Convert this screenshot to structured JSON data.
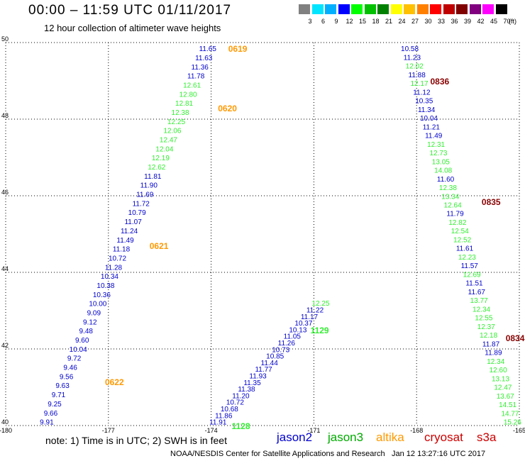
{
  "header": {
    "title": "00:00 – 11:59 UTC 01/11/2017",
    "subtitle": "12 hour collection of altimeter wave heights"
  },
  "legend": {
    "colors": [
      "#808080",
      "#00e5ff",
      "#00b0ff",
      "#0000ff",
      "#00ff00",
      "#00c000",
      "#008000",
      "#ffff00",
      "#ffc000",
      "#ff8000",
      "#ff0000",
      "#c00000",
      "#800000",
      "#800080",
      "#ff00ff",
      "#000000"
    ],
    "labels": [
      "3",
      "6",
      "9",
      "12",
      "15",
      "18",
      "21",
      "24",
      "27",
      "30",
      "33",
      "36",
      "39",
      "42",
      "45",
      "70"
    ],
    "unit": "(ft)"
  },
  "footer": {
    "note": "note: 1) Time is in UTC; 2) SWH is in feet",
    "credit": "NOAA/NESDIS Center for Satellite Applications and Research",
    "timestamp": "Jan 12 13:27:16 UTC 2017",
    "satellites": [
      {
        "name": "jason2",
        "color": "#0000cc"
      },
      {
        "name": "jason3",
        "color": "#00aa00"
      },
      {
        "name": "altika",
        "color": "#ff9900"
      },
      {
        "name": "cryosat",
        "color": "#cc0000"
      },
      {
        "name": "s3a",
        "color": "#cc0000"
      }
    ]
  },
  "chart_data": {
    "type": "scatter",
    "title": "00:00 – 11:59 UTC 01/11/2017",
    "subtitle": "12 hour collection of altimeter wave heights",
    "xlim": [
      -180,
      -165
    ],
    "ylim": [
      40,
      50
    ],
    "x_ticks": [
      "-180",
      "-177",
      "-174",
      "-171",
      "-168",
      "-165"
    ],
    "y_ticks": [
      "40",
      "42",
      "44",
      "46",
      "48",
      "50"
    ],
    "grid": true,
    "series_colors": {
      "jason2": "#0000cc",
      "jason3": "#33ee33",
      "altika": "#ff9900",
      "cryosat": "#880000",
      "s3a": "#cc0000"
    },
    "tracks": [
      {
        "sat": "jason2",
        "start": [
          -174.1,
          49.85
        ],
        "end": [
          -178.8,
          40.1
        ],
        "values": [
          [
            "11.65",
            "jason2"
          ],
          [
            "11.63",
            "jason2"
          ],
          [
            "11.36",
            "jason2"
          ],
          [
            "11.78",
            "jason2"
          ],
          [
            "12.61",
            "jason3"
          ],
          [
            "12.80",
            "jason3"
          ],
          [
            "12.81",
            "jason3"
          ],
          [
            "12.38",
            "jason3"
          ],
          [
            "12.25",
            "jason3"
          ],
          [
            "12.06",
            "jason3"
          ],
          [
            "12.47",
            "jason3"
          ],
          [
            "12.04",
            "jason3"
          ],
          [
            "12.19",
            "jason3"
          ],
          [
            "12.62",
            "jason3"
          ],
          [
            "11.81",
            "jason2"
          ],
          [
            "11.90",
            "jason2"
          ],
          [
            "11.69",
            "jason2"
          ],
          [
            "11.72",
            "jason2"
          ],
          [
            "10.79",
            "jason2"
          ],
          [
            "11.07",
            "jason2"
          ],
          [
            "11.24",
            "jason2"
          ],
          [
            "11.49",
            "jason2"
          ],
          [
            "11.18",
            "jason2"
          ],
          [
            "10.72",
            "jason2"
          ],
          [
            "11.28",
            "jason2"
          ],
          [
            "10.34",
            "jason2"
          ],
          [
            "10.38",
            "jason2"
          ],
          [
            "10.36",
            "jason2"
          ],
          [
            "10.00",
            "jason2"
          ],
          [
            "9.09",
            "jason2"
          ],
          [
            "9.12",
            "jason2"
          ],
          [
            "9.48",
            "jason2"
          ],
          [
            "9.60",
            "jason2"
          ],
          [
            "10.04",
            "jason2"
          ],
          [
            "9.72",
            "jason2"
          ],
          [
            "9.46",
            "jason2"
          ],
          [
            "9.56",
            "jason2"
          ],
          [
            "9.63",
            "jason2"
          ],
          [
            "9.71",
            "jason2"
          ],
          [
            "9.25",
            "jason2"
          ],
          [
            "9.66",
            "jason2"
          ],
          [
            "9.91",
            "jason2"
          ]
        ]
      },
      {
        "sat": "jason2",
        "start": [
          -168.2,
          49.85
        ],
        "end": [
          -165.2,
          40.1
        ],
        "values": [
          [
            "10.58",
            "jason2"
          ],
          [
            "11.23",
            "jason2"
          ],
          [
            "12.02",
            "jason3"
          ],
          [
            "11.88",
            "jason2"
          ],
          [
            "12.17",
            "jason3"
          ],
          [
            "11.12",
            "jason2"
          ],
          [
            "10.35",
            "jason2"
          ],
          [
            "11.34",
            "jason2"
          ],
          [
            "10.04",
            "jason2"
          ],
          [
            "11.21",
            "jason2"
          ],
          [
            "11.49",
            "jason2"
          ],
          [
            "12.31",
            "jason3"
          ],
          [
            "12.73",
            "jason3"
          ],
          [
            "13.05",
            "jason3"
          ],
          [
            "14.08",
            "jason3"
          ],
          [
            "11.60",
            "jason2"
          ],
          [
            "12.38",
            "jason3"
          ],
          [
            "13.34",
            "jason3"
          ],
          [
            "12.64",
            "jason3"
          ],
          [
            "11.79",
            "jason2"
          ],
          [
            "12.82",
            "jason3"
          ],
          [
            "12.54",
            "jason3"
          ],
          [
            "12.52",
            "jason3"
          ],
          [
            "11.61",
            "jason2"
          ],
          [
            "12.23",
            "jason3"
          ],
          [
            "11.57",
            "jason2"
          ],
          [
            "12.69",
            "jason3"
          ],
          [
            "11.51",
            "jason2"
          ],
          [
            "11.67",
            "jason2"
          ],
          [
            "13.77",
            "jason3"
          ],
          [
            "12.34",
            "jason3"
          ],
          [
            "12.55",
            "jason3"
          ],
          [
            "12.37",
            "jason3"
          ],
          [
            "12.18",
            "jason3"
          ],
          [
            "11.87",
            "jason2"
          ],
          [
            "11.89",
            "jason2"
          ],
          [
            "12.34",
            "jason3"
          ],
          [
            "12.60",
            "jason3"
          ],
          [
            "13.13",
            "jason3"
          ],
          [
            "12.47",
            "jason3"
          ],
          [
            "13.67",
            "jason3"
          ],
          [
            "14.51",
            "jason3"
          ],
          [
            "14.77",
            "jason3"
          ],
          [
            "15.26",
            "jason3"
          ]
        ]
      },
      {
        "sat": "jason3",
        "start": [
          -170.8,
          43.2
        ],
        "end": [
          -173.8,
          40.1
        ],
        "values": [
          [
            "12.25",
            "jason3"
          ],
          [
            "11.22",
            "jason2"
          ],
          [
            "11.17",
            "jason2"
          ],
          [
            "10.37",
            "jason2"
          ],
          [
            "10.13",
            "jason2"
          ],
          [
            "11.05",
            "jason2"
          ],
          [
            "11.26",
            "jason2"
          ],
          [
            "10.73",
            "jason2"
          ],
          [
            "10.85",
            "jason2"
          ],
          [
            "11.44",
            "jason2"
          ],
          [
            "11.77",
            "jason2"
          ],
          [
            "11.93",
            "jason2"
          ],
          [
            "11.35",
            "jason2"
          ],
          [
            "11.38",
            "jason2"
          ],
          [
            "11.20",
            "jason2"
          ],
          [
            "10.72",
            "jason2"
          ],
          [
            "10.68",
            "jason2"
          ],
          [
            "11.86",
            "jason2"
          ],
          [
            "11.91",
            "jason2"
          ]
        ]
      }
    ],
    "time_labels": [
      {
        "text": "0619",
        "x": -173.5,
        "y": 49.85,
        "sat": "altika"
      },
      {
        "text": "0620",
        "x": -173.8,
        "y": 48.3,
        "sat": "altika"
      },
      {
        "text": "0621",
        "x": -175.8,
        "y": 44.7,
        "sat": "altika"
      },
      {
        "text": "0622",
        "x": -177.1,
        "y": 41.15,
        "sat": "altika"
      },
      {
        "text": "0836",
        "x": -167.6,
        "y": 49.0,
        "sat": "cryosat"
      },
      {
        "text": "0835",
        "x": -166.1,
        "y": 45.85,
        "sat": "cryosat"
      },
      {
        "text": "0834",
        "x": -165.4,
        "y": 42.3,
        "sat": "cryosat"
      },
      {
        "text": "1129",
        "x": -171.1,
        "y": 42.5,
        "sat": "jason3"
      },
      {
        "text": "1128",
        "x": -173.4,
        "y": 40.0,
        "sat": "jason3"
      }
    ]
  }
}
